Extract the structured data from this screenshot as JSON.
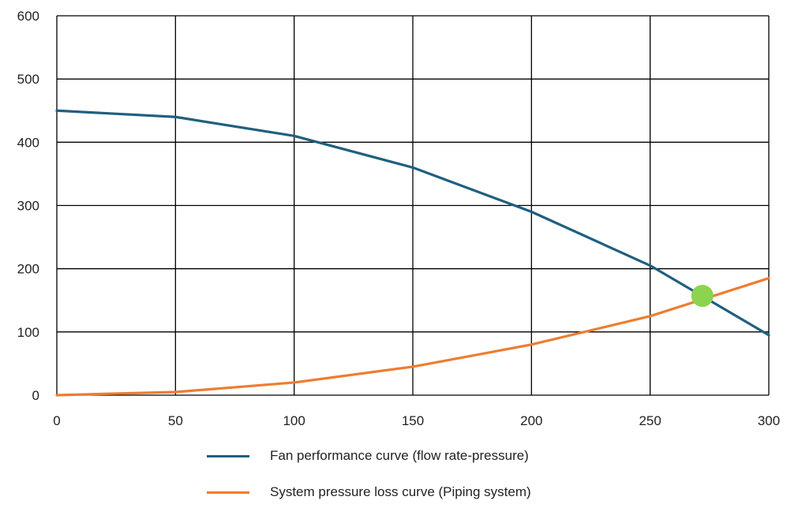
{
  "chart_data": {
    "type": "line",
    "x_ticks": [
      0,
      50,
      100,
      150,
      200,
      250,
      300
    ],
    "y_ticks": [
      0,
      100,
      200,
      300,
      400,
      500,
      600
    ],
    "xlim": [
      0,
      300
    ],
    "ylim": [
      0,
      600
    ],
    "grid": true,
    "legend_position": "bottom",
    "series": [
      {
        "name": "Fan performance curve (flow rate-pressure)",
        "color": "#1f5f7f",
        "x": [
          0,
          50,
          100,
          150,
          200,
          250,
          300
        ],
        "y": [
          450,
          440,
          410,
          360,
          290,
          205,
          95
        ]
      },
      {
        "name": "System pressure loss curve (Piping system)",
        "color": "#ed7d31",
        "x": [
          0,
          50,
          100,
          150,
          200,
          250,
          300
        ],
        "y": [
          0,
          5,
          20,
          45,
          80,
          125,
          185
        ]
      }
    ],
    "operating_point": {
      "x": 272,
      "y": 157,
      "color": "#8dd34f"
    }
  }
}
